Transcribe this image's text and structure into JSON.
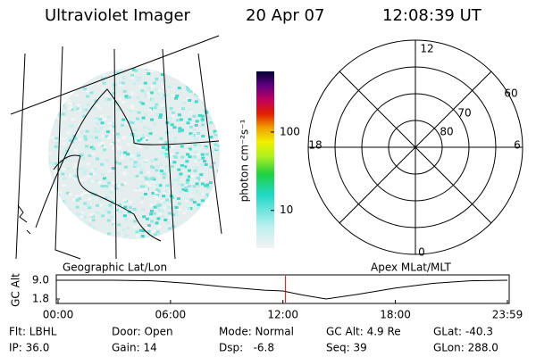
{
  "header": {
    "title": "Ultraviolet Imager",
    "date": "20 Apr 07",
    "time": "12:08:39 UT"
  },
  "colorbar": {
    "label": "photon cm⁻²s⁻¹",
    "clim": [
      3.3,
      593
    ],
    "log": true,
    "ticks": [
      100,
      10
    ]
  },
  "polar": {
    "labels": [
      "12",
      "18",
      "6",
      "0",
      "60",
      "70",
      "80"
    ]
  },
  "panel_labels": {
    "left": "Geographic Lat/Lon",
    "right": "Apex MLat/MLT"
  },
  "altitude_plot": {
    "ylabel": "GC Alt",
    "x": [
      0,
      3,
      5,
      7,
      9,
      11,
      12,
      13,
      14.3,
      16,
      18,
      20,
      22,
      23.98
    ],
    "values": [
      9.0,
      9.0,
      8.8,
      7.8,
      6.4,
      5.2,
      4.9,
      3.4,
      1.8,
      3.6,
      6.0,
      7.8,
      8.8,
      9.0
    ],
    "xlim": [
      0,
      23.98
    ],
    "ylim": [
      1.8,
      9.0
    ],
    "yticks": [
      {
        "value": 9,
        "label": "9.0"
      },
      1.8
    ],
    "xticks": [
      {
        "value": 0,
        "label": "00:00"
      },
      {
        "value": 6,
        "label": "06:00"
      },
      {
        "value": 12,
        "label": "12:00"
      },
      {
        "value": 18,
        "label": "18:00"
      },
      {
        "value": 23.98,
        "label": "23:59"
      }
    ],
    "marker_time": 12.14,
    "marker_color": "#e00000"
  },
  "info": {
    "rows": [
      [
        "Flt: LBHL",
        "Door: Open",
        "Mode: Normal",
        "GC Alt: 4.9 Re",
        "GLat: -40.3"
      ],
      [
        "IP: 36.0",
        "Gain: 14",
        "Dsp:   -6.8",
        "Seq: 39",
        "GLon: 288.0"
      ]
    ]
  }
}
